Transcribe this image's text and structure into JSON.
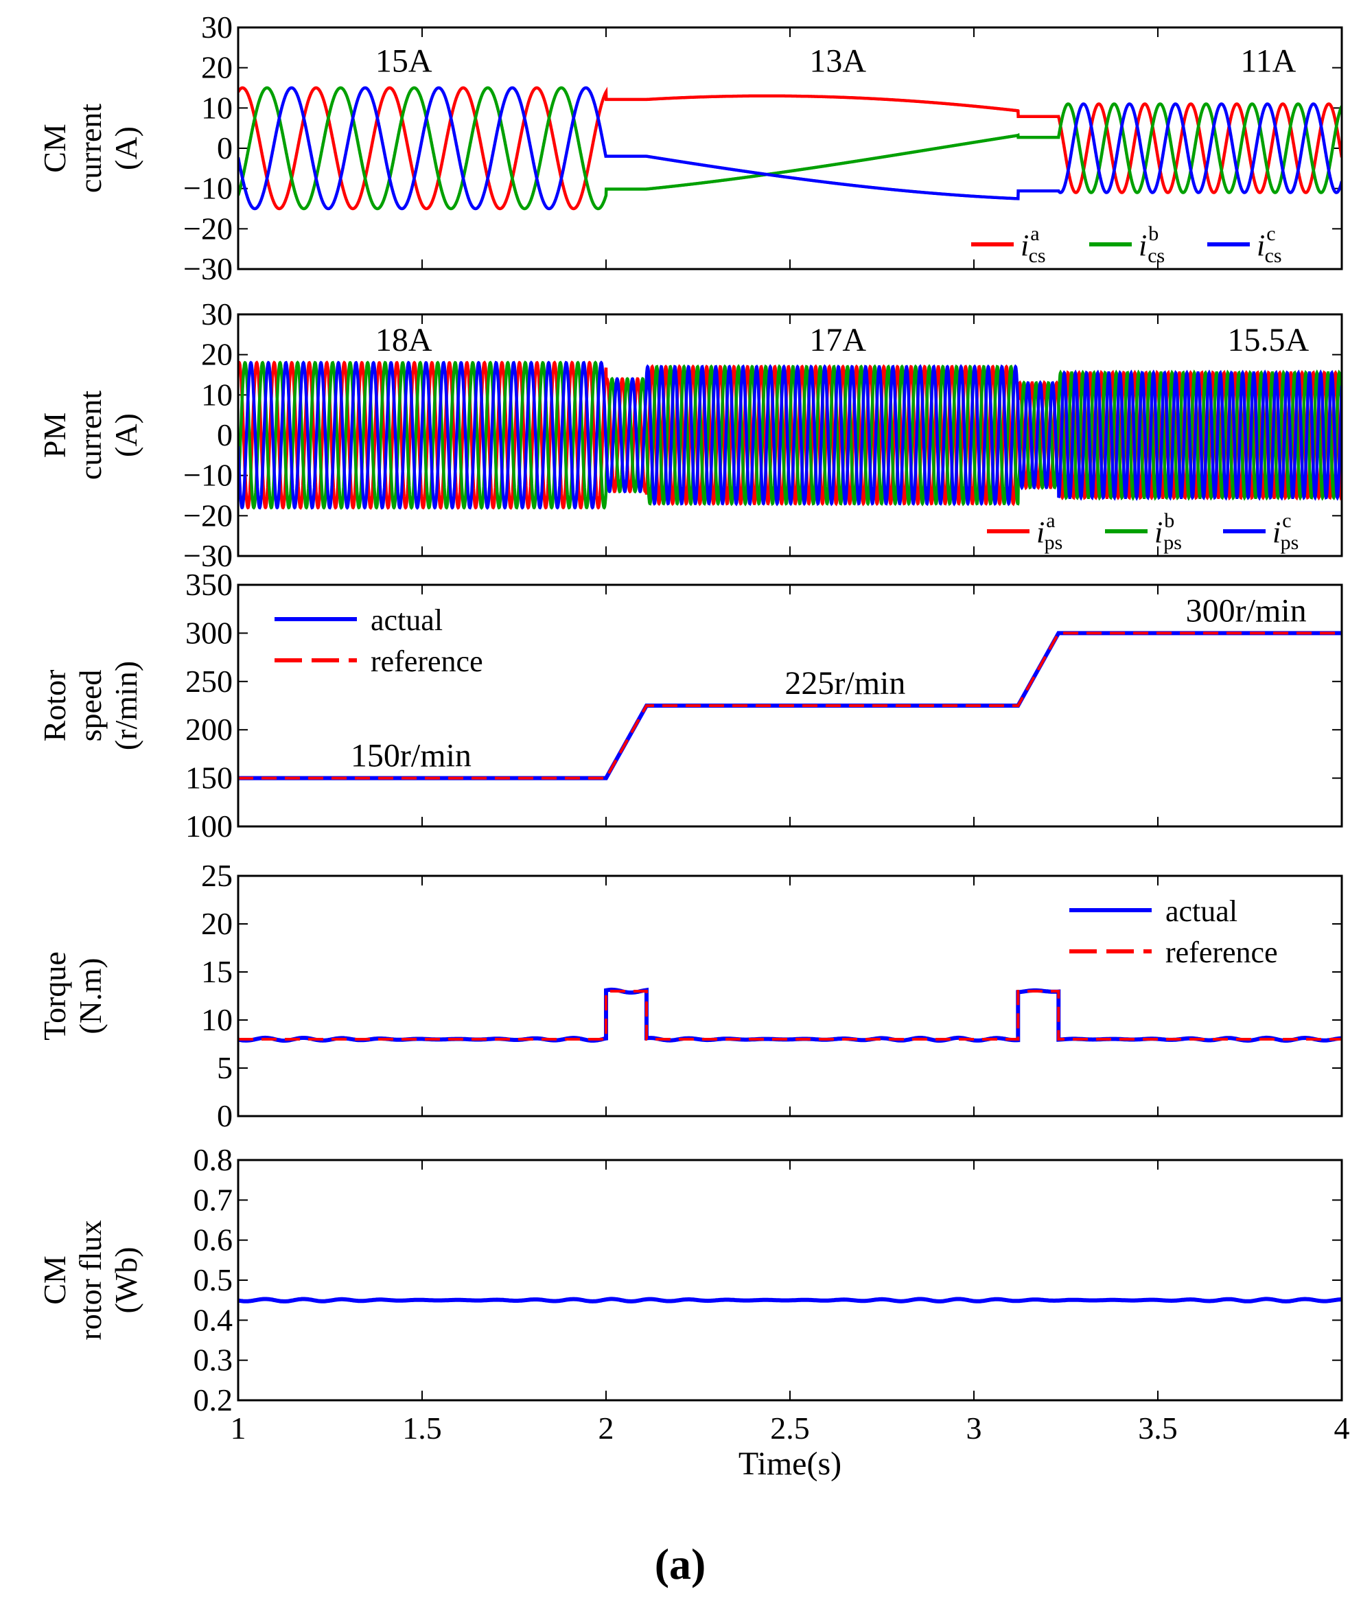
{
  "chart_data": [
    {
      "type": "line",
      "id": "cm_current",
      "ylabel_lines": [
        "CM",
        "current",
        "(A)"
      ],
      "xlim": [
        1,
        4
      ],
      "ylim": [
        -30,
        30
      ],
      "yticks": [
        30,
        20,
        10,
        0,
        -10,
        -20,
        -30
      ],
      "ytick_labels": [
        "30",
        "20",
        "10",
        "0",
        "−10",
        "−20",
        "−30"
      ],
      "series": [
        {
          "name": "a",
          "color": "#ff0000",
          "phase_deg": 0
        },
        {
          "name": "b",
          "color": "#00a000",
          "phase_deg": -120
        },
        {
          "name": "c",
          "color": "#0000ff",
          "phase_deg": 120
        }
      ],
      "legend": [
        {
          "sym": "i",
          "sup": "a",
          "sub": "cs",
          "color": "#ff0000"
        },
        {
          "sym": "i",
          "sup": "b",
          "sub": "cs",
          "color": "#00a000"
        },
        {
          "sym": "i",
          "sup": "c",
          "sub": "cs",
          "color": "#0000ff"
        }
      ],
      "legend_position": "bottom-right",
      "annotations": [
        {
          "text": "15A",
          "x": 1.45,
          "y": 19
        },
        {
          "text": "13A",
          "x": 2.63,
          "y": 19
        },
        {
          "text": "11A",
          "x": 3.8,
          "y": 19
        }
      ],
      "segments": [
        {
          "t0": 1.0,
          "t1": 2.0,
          "amp": 15,
          "freq_hz": 5
        },
        {
          "t0": 2.0,
          "t1": 2.11,
          "amp": 13,
          "freq_hz": 0,
          "transition": true
        },
        {
          "t0": 2.11,
          "t1": 3.12,
          "amp": 13,
          "freq_hz": 0.18
        },
        {
          "t0": 3.12,
          "t1": 3.23,
          "amp": 11,
          "freq_hz": 0,
          "transition": true
        },
        {
          "t0": 3.23,
          "t1": 4.0,
          "amp": 11,
          "freq_hz": 8
        }
      ]
    },
    {
      "type": "line",
      "id": "pm_current",
      "ylabel_lines": [
        "PM",
        "current",
        "(A)"
      ],
      "xlim": [
        1,
        4
      ],
      "ylim": [
        -30,
        30
      ],
      "yticks": [
        30,
        20,
        10,
        0,
        -10,
        -20,
        -30
      ],
      "ytick_labels": [
        "30",
        "20",
        "10",
        "0",
        "−10",
        "−20",
        "−30"
      ],
      "series": [
        {
          "name": "a",
          "color": "#ff0000",
          "phase_deg": 0
        },
        {
          "name": "b",
          "color": "#00a000",
          "phase_deg": -120
        },
        {
          "name": "c",
          "color": "#0000ff",
          "phase_deg": 120
        }
      ],
      "legend": [
        {
          "sym": "i",
          "sup": "a",
          "sub": "ps",
          "color": "#ff0000"
        },
        {
          "sym": "i",
          "sup": "b",
          "sub": "ps",
          "color": "#00a000"
        },
        {
          "sym": "i",
          "sup": "c",
          "sub": "ps",
          "color": "#0000ff"
        }
      ],
      "legend_position": "bottom-right",
      "annotations": [
        {
          "text": "18A",
          "x": 1.45,
          "y": 21
        },
        {
          "text": "17A",
          "x": 2.63,
          "y": 21
        },
        {
          "text": "15.5A",
          "x": 3.8,
          "y": 21
        }
      ],
      "segments": [
        {
          "t0": 1.0,
          "t1": 2.0,
          "amp": 18,
          "freq_hz": 21
        },
        {
          "t0": 2.0,
          "t1": 2.11,
          "amp": 14,
          "freq_hz": 24
        },
        {
          "t0": 2.11,
          "t1": 3.12,
          "amp": 17,
          "freq_hz": 27
        },
        {
          "t0": 3.12,
          "t1": 3.23,
          "amp": 13,
          "freq_hz": 30
        },
        {
          "t0": 3.23,
          "t1": 4.0,
          "amp": 15.5,
          "freq_hz": 33
        }
      ]
    },
    {
      "type": "line",
      "id": "rotor_speed",
      "ylabel_lines": [
        "Rotor",
        "speed",
        "(r/min)"
      ],
      "xlim": [
        1,
        4
      ],
      "ylim": [
        100,
        350
      ],
      "yticks": [
        350,
        300,
        250,
        200,
        150,
        100
      ],
      "ytick_labels": [
        "350",
        "300",
        "250",
        "200",
        "150",
        "100"
      ],
      "series": [
        {
          "name": "actual",
          "color": "#0000ff",
          "style": "solid",
          "x": [
            1,
            2,
            2.11,
            3.12,
            3.23,
            4
          ],
          "y": [
            150,
            150,
            225,
            225,
            300,
            300
          ]
        },
        {
          "name": "reference",
          "color": "#ff0000",
          "style": "dashed",
          "x": [
            1,
            2,
            2.11,
            3.12,
            3.23,
            4
          ],
          "y": [
            150,
            150,
            225,
            225,
            300,
            300
          ]
        }
      ],
      "legend": [
        {
          "label": "actual",
          "color": "#0000ff",
          "style": "solid"
        },
        {
          "label": "reference",
          "color": "#ff0000",
          "style": "dashed"
        }
      ],
      "legend_position": "top-left",
      "annotations": [
        {
          "text": "150r/min",
          "x": 1.47,
          "y": 162
        },
        {
          "text": "225r/min",
          "x": 2.65,
          "y": 237
        },
        {
          "text": "300r/min",
          "x": 3.74,
          "y": 312
        }
      ]
    },
    {
      "type": "line",
      "id": "torque",
      "ylabel_lines": [
        "Torque",
        "(N.m)"
      ],
      "xlim": [
        1,
        4
      ],
      "ylim": [
        0,
        25
      ],
      "yticks": [
        25,
        20,
        15,
        10,
        5,
        0
      ],
      "ytick_labels": [
        "25",
        "20",
        "15",
        "10",
        "5",
        "0"
      ],
      "series": [
        {
          "name": "actual",
          "color": "#0000ff",
          "style": "solid",
          "ripple": 0.15,
          "x": [
            1,
            2,
            2,
            2.11,
            2.11,
            3.12,
            3.12,
            3.23,
            3.23,
            4
          ],
          "y": [
            8,
            8,
            13,
            13,
            8,
            8,
            13,
            13,
            8,
            8
          ]
        },
        {
          "name": "reference",
          "color": "#ff0000",
          "style": "dashed",
          "x": [
            1,
            2,
            2,
            2.11,
            2.11,
            3.12,
            3.12,
            3.23,
            3.23,
            4
          ],
          "y": [
            8,
            8,
            13,
            13,
            8,
            8,
            13,
            13,
            8,
            8
          ]
        }
      ],
      "legend": [
        {
          "label": "actual",
          "color": "#0000ff",
          "style": "solid"
        },
        {
          "label": "reference",
          "color": "#ff0000",
          "style": "dashed"
        }
      ],
      "legend_position": "top-right",
      "annotations": []
    },
    {
      "type": "line",
      "id": "cm_rotor_flux",
      "ylabel_lines": [
        "CM",
        "rotor flux",
        "(Wb)"
      ],
      "xlim": [
        1,
        4
      ],
      "ylim": [
        0.2,
        0.8
      ],
      "yticks": [
        0.8,
        0.7,
        0.6,
        0.5,
        0.4,
        0.3,
        0.2
      ],
      "ytick_labels": [
        "0.8",
        "0.7",
        "0.6",
        "0.5",
        "0.4",
        "0.3",
        "0.2"
      ],
      "xticks": [
        1,
        1.5,
        2,
        2.5,
        3,
        3.5,
        4
      ],
      "xtick_labels": [
        "1",
        "1.5",
        "2",
        "2.5",
        "3",
        "3.5",
        "4"
      ],
      "xlabel": "Time(s)",
      "series": [
        {
          "name": "flux",
          "color": "#0000ff",
          "style": "solid",
          "ripple": 0.003,
          "x": [
            1,
            4
          ],
          "y": [
            0.45,
            0.45
          ]
        }
      ],
      "legend": [],
      "annotations": []
    }
  ],
  "caption": "(a)"
}
